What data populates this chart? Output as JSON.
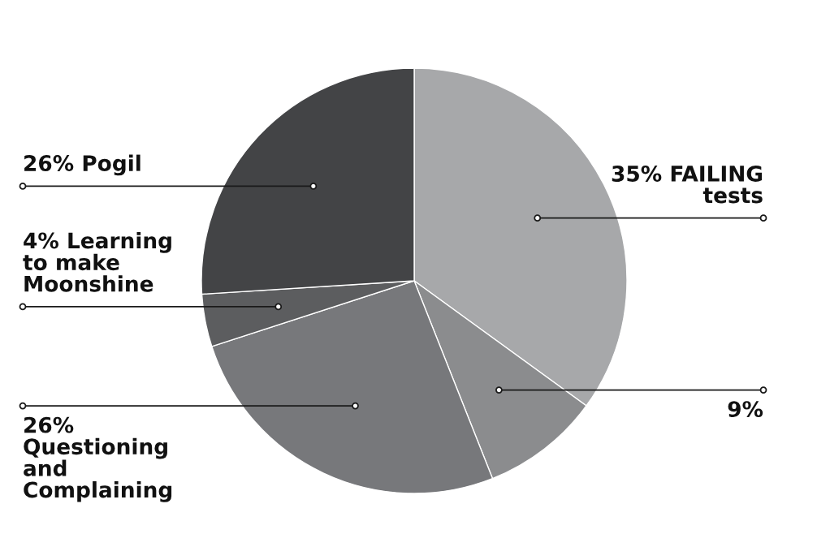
{
  "chart_data": {
    "type": "pie",
    "categories": [
      "FAILING tests",
      null,
      "Questioning and Complaining",
      "Learning to make Moonshine",
      "Pogil"
    ],
    "values": [
      35,
      9,
      26,
      4,
      26
    ],
    "value_labels": [
      "35%",
      "9%",
      "26%",
      "4%",
      "26%"
    ],
    "colors": [
      "#a7a8aa",
      "#8b8c8e",
      "#77787b",
      "#5c5d5f",
      "#434446"
    ]
  }
}
